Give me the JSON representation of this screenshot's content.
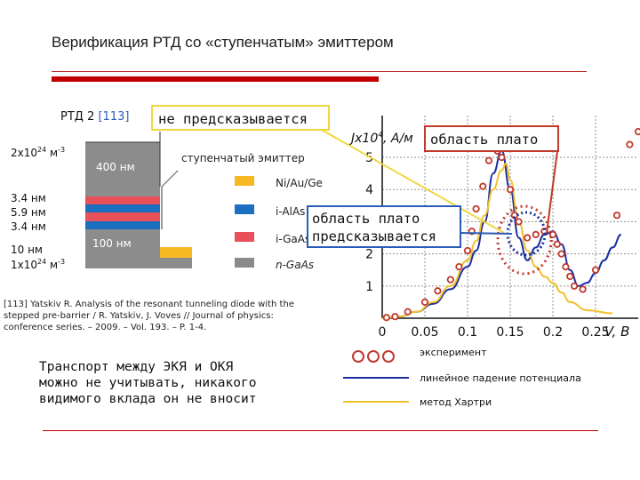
{
  "slide": {
    "title": "Верификация РТД со «ступенчатым» эмиттером",
    "body_lines": [
      "Транспорт между ЭКЯ и ОКЯ",
      "можно не учитывать, никакого",
      "видимого вклада он не вносит"
    ]
  },
  "structure": {
    "label": "РТД 2",
    "ref": "[113]",
    "doping_top": "2x10",
    "doping_top_exp": "24",
    "doping_top_unit": "м",
    "doping_top_unit_exp": "-3",
    "doping_bottom": "1x10",
    "doping_bottom_exp": "24",
    "doping_bottom_unit": "м",
    "doping_bottom_unit_exp": "-3",
    "top_layer": "400 нм",
    "bottom_layer": "100 нм",
    "emitter_label": "ступенчатый эмиттер",
    "thicknesses": [
      "3.4 нм",
      "5.9 нм",
      "3.4 нм",
      "10 нм"
    ],
    "materials": [
      {
        "name": "Ni/Au/Ge",
        "color": "#f6b820"
      },
      {
        "name": "i-AlAs",
        "color": "#1a6fc0"
      },
      {
        "name": "i-GaAs",
        "color": "#e8505a"
      },
      {
        "name": "n-GaAs",
        "color": "#8a8a8a"
      }
    ],
    "reference_lines": [
      "[113] Yatskiv R. Analysis of the resonant tunneling diode with the",
      "stepped pre-barrier / R. Yatskiv, J. Voves // Journal of physics:",
      "conference series. – 2009. – Vol. 193. – P. 1-4."
    ]
  },
  "callouts": {
    "not_predicted": "не предсказывается",
    "plateau": "область плато",
    "plateau_predicted_1": "область плато",
    "plateau_predicted_2": "предсказывается"
  },
  "chart_data": {
    "type": "line",
    "ylabel": "Jx10",
    "ylabel_exp": "4",
    "ylabel_unit": ", А/м",
    "xlabel": "V, В",
    "x_ticks": [
      "0",
      "0.05",
      "0.1",
      "0.15",
      "0.2",
      "0.25"
    ],
    "y_ticks": [
      "1",
      "2",
      "3",
      "4",
      "5"
    ],
    "xlim": [
      0,
      0.3
    ],
    "ylim": [
      0,
      6.3
    ],
    "series": [
      {
        "name": "эксперимент",
        "kind": "points",
        "color": "#c0392b",
        "x": [
          0.005,
          0.015,
          0.03,
          0.05,
          0.065,
          0.08,
          0.09,
          0.1,
          0.105,
          0.11,
          0.118,
          0.125,
          0.135,
          0.14,
          0.15,
          0.155,
          0.16,
          0.17,
          0.18,
          0.19,
          0.2,
          0.205,
          0.21,
          0.215,
          0.22,
          0.225,
          0.235,
          0.25,
          0.275,
          0.29,
          0.3
        ],
        "y": [
          0.02,
          0.05,
          0.2,
          0.5,
          0.85,
          1.2,
          1.6,
          2.1,
          2.7,
          3.4,
          4.1,
          4.9,
          5.2,
          5.0,
          4.0,
          3.2,
          3.0,
          2.5,
          2.6,
          2.7,
          2.6,
          2.3,
          2.0,
          1.6,
          1.3,
          1.0,
          0.9,
          1.5,
          3.2,
          5.4,
          5.8
        ]
      },
      {
        "name": "линейное падение потенциала",
        "kind": "line",
        "color": "#1c2f9e",
        "x": [
          0,
          0.02,
          0.04,
          0.06,
          0.08,
          0.1,
          0.11,
          0.12,
          0.13,
          0.14,
          0.15,
          0.16,
          0.17,
          0.18,
          0.19,
          0.2,
          0.21,
          0.22,
          0.23,
          0.24,
          0.25,
          0.26,
          0.27,
          0.28
        ],
        "y": [
          0,
          0.05,
          0.2,
          0.45,
          0.9,
          1.6,
          2.1,
          3.0,
          4.5,
          5.2,
          4.0,
          2.5,
          1.8,
          2.2,
          2.6,
          2.7,
          2.3,
          1.5,
          1.0,
          1.1,
          1.4,
          1.8,
          2.2,
          2.6
        ]
      },
      {
        "name": "метод Хартри",
        "kind": "line",
        "color": "#f2c12e",
        "x": [
          0,
          0.02,
          0.04,
          0.06,
          0.08,
          0.1,
          0.11,
          0.12,
          0.13,
          0.14,
          0.145,
          0.15,
          0.16,
          0.17,
          0.18,
          0.19,
          0.2,
          0.21,
          0.22,
          0.24,
          0.27
        ],
        "y": [
          0,
          0.05,
          0.2,
          0.5,
          1.0,
          1.8,
          2.4,
          3.2,
          4.0,
          4.6,
          4.8,
          4.3,
          3.0,
          2.1,
          1.6,
          1.3,
          1.1,
          0.8,
          0.5,
          0.25,
          0.15
        ]
      }
    ]
  },
  "legend": {
    "exp_label": "эксперимент",
    "lin_label": "линейное падение потенциала",
    "hartree_label": "метод Хартри",
    "lin_color": "#1c2f9e",
    "hartree_color": "#f2c12e",
    "exp_color": "#c0392b"
  }
}
